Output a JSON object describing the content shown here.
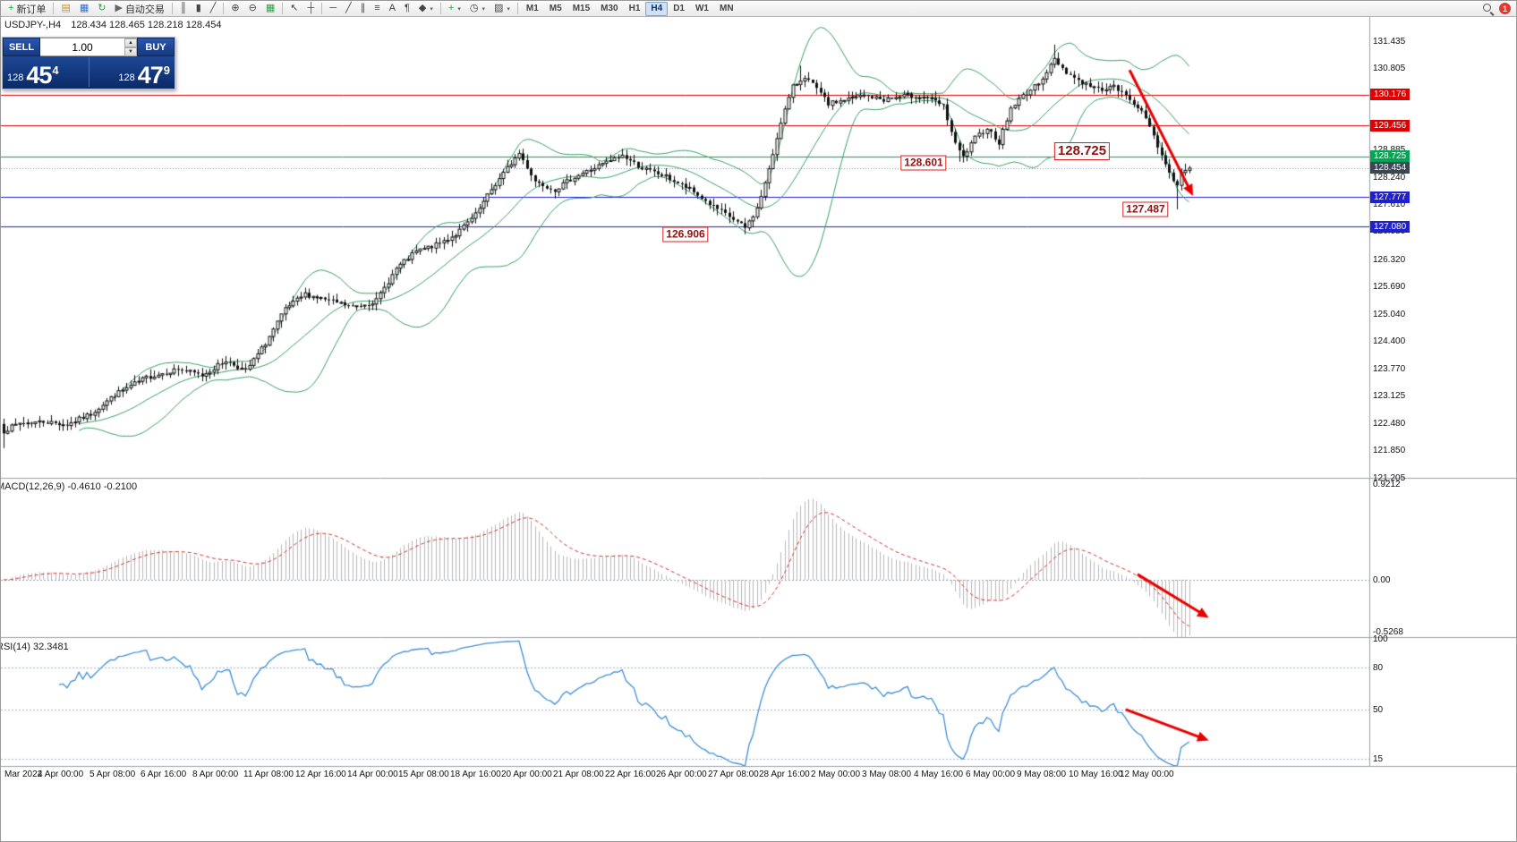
{
  "toolbar": {
    "new_order_label": "新订单",
    "algo_trading_label": "自动交易",
    "caret_glyph": "▾",
    "notifications_count": "1",
    "timeframes": [
      "M1",
      "M5",
      "M15",
      "M30",
      "H1",
      "H4",
      "D1",
      "W1",
      "MN"
    ],
    "active_timeframe": "H4",
    "items": [
      {
        "type": "button",
        "name": "new-order-button",
        "glyph": "+",
        "color": "#18a335",
        "label": "新订单"
      },
      {
        "type": "sep"
      },
      {
        "type": "button",
        "name": "new-chart-button",
        "glyph": "▤",
        "color": "#c8921e"
      },
      {
        "type": "button",
        "name": "market-watch-button",
        "glyph": "▦",
        "color": "#2f6fd0"
      },
      {
        "type": "button",
        "name": "refresh-button",
        "glyph": "↻",
        "color": "#2f9e44"
      },
      {
        "type": "button",
        "name": "algo-trading-button",
        "glyph": "▶",
        "color": "#666666",
        "label": "自动交易"
      },
      {
        "type": "sep"
      },
      {
        "type": "button",
        "name": "bar-chart-button",
        "glyph": "║",
        "color": "#444444"
      },
      {
        "type": "button",
        "name": "candlestick-chart-button",
        "glyph": "▮",
        "color": "#444444"
      },
      {
        "type": "button",
        "name": "line-chart-button",
        "glyph": "╱",
        "color": "#444444"
      },
      {
        "type": "sep"
      },
      {
        "type": "button",
        "name": "zoom-in-button",
        "glyph": "⊕",
        "color": "#444444"
      },
      {
        "type": "button",
        "name": "zoom-out-button",
        "glyph": "⊖",
        "color": "#444444"
      },
      {
        "type": "button",
        "name": "tile-windows-button",
        "glyph": "▦",
        "color": "#2f9e44"
      },
      {
        "type": "sep"
      },
      {
        "type": "button",
        "name": "cursor-button",
        "glyph": "↖",
        "color": "#444444"
      },
      {
        "type": "button",
        "name": "crosshair-button",
        "glyph": "┼",
        "color": "#444444"
      },
      {
        "type": "sep"
      },
      {
        "type": "button",
        "name": "horizontal-line-button",
        "glyph": "─",
        "color": "#444444"
      },
      {
        "type": "button",
        "name": "trendline-button",
        "glyph": "╱",
        "color": "#444444"
      },
      {
        "type": "button",
        "name": "channel-button",
        "glyph": "∥",
        "color": "#444444"
      },
      {
        "type": "button",
        "name": "fibonacci-button",
        "glyph": "≡",
        "color": "#444444"
      },
      {
        "type": "button",
        "name": "text-button",
        "glyph": "A",
        "color": "#444444"
      },
      {
        "type": "button",
        "name": "label-button",
        "glyph": "¶",
        "color": "#444444"
      },
      {
        "type": "button",
        "name": "shapes-button",
        "glyph": "◆",
        "color": "#444444",
        "caret": true
      },
      {
        "type": "sep"
      },
      {
        "type": "button",
        "name": "indicators-button",
        "glyph": "+",
        "color": "#2f9e44",
        "caret": true
      },
      {
        "type": "button",
        "name": "periods-button",
        "glyph": "◷",
        "color": "#444444",
        "caret": true
      },
      {
        "type": "button",
        "name": "templates-button",
        "glyph": "▨",
        "color": "#444444",
        "caret": true
      },
      {
        "type": "sep"
      },
      {
        "type": "tf-group"
      },
      {
        "type": "spacer"
      },
      {
        "type": "search"
      },
      {
        "type": "badge"
      }
    ]
  },
  "chart_header": {
    "symbol_period": "USDJPY-,H4",
    "ohlc": "128.434 128.465 128.218 128.454"
  },
  "trade_widget": {
    "sell_label": "SELL",
    "buy_label": "BUY",
    "volume": "1.00",
    "spinner_up": "▲",
    "spinner_down": "▼",
    "bid": {
      "main": "128",
      "big": "45",
      "sup": "4"
    },
    "ask": {
      "main": "128",
      "big": "47",
      "sup": "9"
    }
  },
  "price_axis": {
    "ticks": [
      131.435,
      130.805,
      128.885,
      128.24,
      127.61,
      126.98,
      126.32,
      125.69,
      125.04,
      124.4,
      123.77,
      123.125,
      122.48,
      121.85,
      121.205
    ],
    "tags": [
      {
        "value": "130.176",
        "color": "#e00000"
      },
      {
        "value": "129.456",
        "color": "#e00000"
      },
      {
        "value": "128.725",
        "color": "#00a651"
      },
      {
        "value": "128.454",
        "color": "#3c4554"
      },
      {
        "value": "127.777",
        "color": "#2020cc"
      },
      {
        "value": "127.080",
        "color": "#2020cc"
      }
    ]
  },
  "time_axis": [
    "Mar 2022",
    "4 Apr 00:00",
    "5 Apr 08:00",
    "6 Apr 16:00",
    "8 Apr 00:00",
    "11 Apr 08:00",
    "12 Apr 16:00",
    "14 Apr 00:00",
    "15 Apr 08:00",
    "18 Apr 16:00",
    "20 Apr 00:00",
    "21 Apr 08:00",
    "22 Apr 16:00",
    "26 Apr 00:00",
    "27 Apr 08:00",
    "28 Apr 16:00",
    "2 May 00:00",
    "3 May 08:00",
    "4 May 16:00",
    "6 May 00:00",
    "9 May 08:00",
    "10 May 16:00",
    "12 May 00:00"
  ],
  "indicators": {
    "macd_label": "MACD(12,26,9) -0.4610 -0.2100",
    "macd_axis": [
      "0.9212",
      "0.00",
      "-0.5268"
    ],
    "rsi_label": "RSI(14) 32.3481",
    "rsi_axis": [
      "100",
      "80",
      "50",
      "15"
    ]
  },
  "chart_data": {
    "type": "candlestick",
    "symbol": "USDJPY",
    "period": "H4",
    "bars": 300,
    "ylim": [
      121.205,
      131.99
    ],
    "price_waypoints": [
      [
        0,
        122.3
      ],
      [
        4,
        122.48
      ],
      [
        10,
        122.52
      ],
      [
        16,
        122.45
      ],
      [
        22,
        122.7
      ],
      [
        28,
        123.15
      ],
      [
        36,
        123.55
      ],
      [
        44,
        123.75
      ],
      [
        50,
        123.6
      ],
      [
        56,
        123.95
      ],
      [
        61,
        123.7
      ],
      [
        66,
        124.35
      ],
      [
        71,
        125.15
      ],
      [
        76,
        125.5
      ],
      [
        82,
        125.35
      ],
      [
        88,
        125.2
      ],
      [
        94,
        125.35
      ],
      [
        99,
        126.1
      ],
      [
        104,
        126.5
      ],
      [
        109,
        126.65
      ],
      [
        114,
        126.9
      ],
      [
        119,
        127.35
      ],
      [
        123,
        127.95
      ],
      [
        127,
        128.45
      ],
      [
        130,
        128.8
      ],
      [
        134,
        128.15
      ],
      [
        139,
        127.95
      ],
      [
        144,
        128.25
      ],
      [
        150,
        128.5
      ],
      [
        156,
        128.75
      ],
      [
        161,
        128.45
      ],
      [
        167,
        128.25
      ],
      [
        173,
        127.95
      ],
      [
        179,
        127.55
      ],
      [
        184,
        127.25
      ],
      [
        187,
        127.05
      ],
      [
        190,
        127.5
      ],
      [
        193,
        128.4
      ],
      [
        196,
        129.55
      ],
      [
        199,
        130.35
      ],
      [
        202,
        130.6
      ],
      [
        205,
        130.3
      ],
      [
        208,
        129.95
      ],
      [
        212,
        130.05
      ],
      [
        217,
        130.15
      ],
      [
        222,
        130.05
      ],
      [
        228,
        130.15
      ],
      [
        233,
        130.1
      ],
      [
        237,
        129.9
      ],
      [
        240,
        129.0
      ],
      [
        242,
        128.7
      ],
      [
        245,
        129.15
      ],
      [
        248,
        129.4
      ],
      [
        251,
        129.05
      ],
      [
        254,
        129.85
      ],
      [
        257,
        130.15
      ],
      [
        260,
        130.35
      ],
      [
        263,
        130.7
      ],
      [
        265,
        131.0
      ],
      [
        268,
        130.7
      ],
      [
        272,
        130.45
      ],
      [
        276,
        130.3
      ],
      [
        280,
        130.35
      ],
      [
        283,
        130.15
      ],
      [
        286,
        129.9
      ],
      [
        289,
        129.45
      ],
      [
        292,
        128.75
      ],
      [
        295,
        128.15
      ],
      [
        296,
        128.05
      ],
      [
        297,
        128.35
      ],
      [
        299,
        128.454
      ]
    ],
    "wick_anchors": [
      {
        "bar": 0,
        "price": 121.9
      },
      {
        "bar": 187,
        "price": 126.906
      },
      {
        "bar": 201,
        "price": 130.85
      },
      {
        "bar": 241,
        "price": 128.601
      },
      {
        "bar": 265,
        "price": 131.345
      },
      {
        "bar": 296,
        "price": 127.487
      }
    ],
    "bollinger": {
      "period": 20,
      "deviation": 2,
      "color": "#3aa06a"
    },
    "levels": [
      {
        "price": 130.176,
        "color": "#e00000"
      },
      {
        "price": 129.456,
        "color": "#e00000"
      },
      {
        "price": 128.725,
        "color": "#00a651"
      },
      {
        "price": 127.777,
        "color": "#2020cc"
      },
      {
        "price": 127.08,
        "color": "#2020cc"
      }
    ],
    "current_price": 128.454,
    "annotations": [
      {
        "text": "128.601",
        "bar": 232,
        "price": 128.58,
        "size": 12
      },
      {
        "text": "128.725",
        "bar": 272,
        "price": 128.85,
        "size": 15
      },
      {
        "text": "126.906",
        "bar": 172,
        "price": 126.906,
        "size": 12
      },
      {
        "text": "127.487",
        "bar": 288,
        "price": 127.487,
        "size": 12
      }
    ],
    "arrows": {
      "color": "#e80000",
      "main": {
        "from_bar": 284,
        "from_price": 130.75,
        "to_bar": 300,
        "to_price": 127.8
      },
      "macd": {
        "from_bar": 286,
        "from_value": 0.05,
        "to_bar": 304,
        "to_value": -0.35
      },
      "rsi": {
        "from_bar": 283,
        "from_value": 50,
        "to_bar": 304,
        "to_value": 28
      }
    },
    "macd": {
      "params": "12,26,9",
      "main": -0.461,
      "signal": -0.21,
      "range": [
        -0.5268,
        0.9212
      ],
      "histogram_color": "#b8b8b8",
      "signal_color": "#d23030"
    },
    "rsi": {
      "period": 14,
      "value": 32.3481,
      "range": [
        10,
        100
      ],
      "levels": [
        80,
        50,
        15
      ],
      "line_color": "#3f8fd6"
    }
  },
  "colors": {
    "level_red": "#e00000",
    "level_green": "#00a651",
    "level_blue": "#2020cc",
    "widget_navy": "#16397f",
    "band_green": "#3aa06a"
  }
}
